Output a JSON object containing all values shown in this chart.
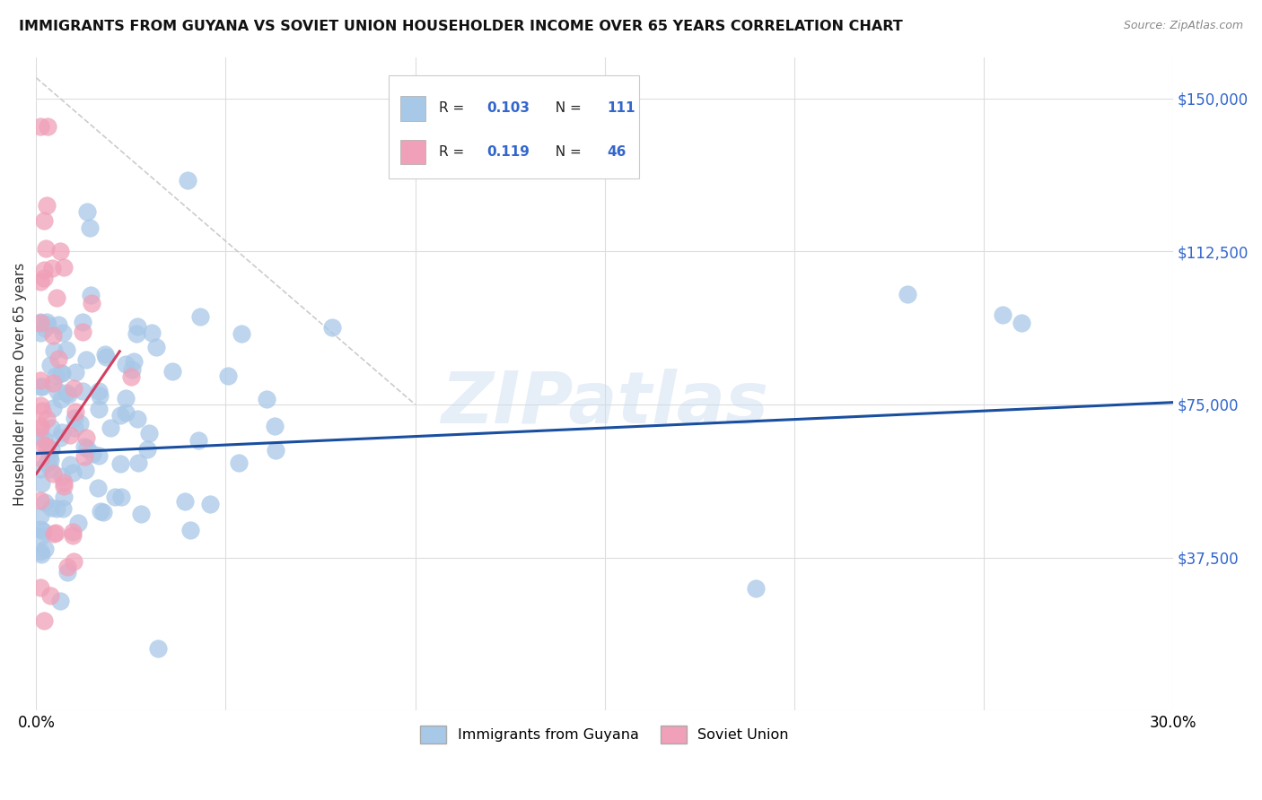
{
  "title": "IMMIGRANTS FROM GUYANA VS SOVIET UNION HOUSEHOLDER INCOME OVER 65 YEARS CORRELATION CHART",
  "source": "Source: ZipAtlas.com",
  "ylabel": "Householder Income Over 65 years",
  "xlim": [
    0.0,
    0.3
  ],
  "ylim": [
    0,
    160000
  ],
  "yticks": [
    0,
    37500,
    75000,
    112500,
    150000
  ],
  "ytick_labels": [
    "",
    "$37,500",
    "$75,000",
    "$112,500",
    "$150,000"
  ],
  "xticks": [
    0.0,
    0.05,
    0.1,
    0.15,
    0.2,
    0.25,
    0.3
  ],
  "xtick_labels": [
    "0.0%",
    "",
    "",
    "",
    "",
    "",
    "30.0%"
  ],
  "guyana_color": "#a8c8e8",
  "soviet_color": "#f0a0b8",
  "trend_blue_color": "#1a4fa0",
  "trend_pink_color": "#d04060",
  "legend_text_color": "#3366cc",
  "watermark": "ZIPatlas",
  "guyana_R": "0.103",
  "guyana_N": "111",
  "soviet_R": "0.119",
  "soviet_N": "46",
  "gray_line_x": [
    0.0,
    0.1
  ],
  "gray_line_y": [
    155000,
    75000
  ],
  "blue_trend_x": [
    0.0,
    0.3
  ],
  "blue_trend_y": [
    63000,
    75500
  ],
  "pink_trend_x": [
    0.0,
    0.022
  ],
  "pink_trend_y": [
    58000,
    88000
  ]
}
